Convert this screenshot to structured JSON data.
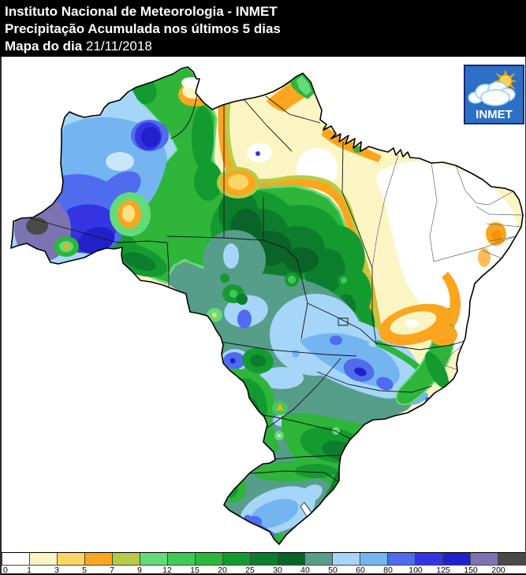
{
  "header": {
    "title": "Instituto Nacional de Meteorologia - INMET",
    "subtitle": "Precipitação Acumulada nos últimos 5 dias",
    "map_label": "Mapa do dia",
    "map_date": "21/11/2018"
  },
  "logo": {
    "text": "INMET"
  },
  "legend": {
    "tick_labels": [
      "0",
      "1",
      "3",
      "5",
      "7",
      "9",
      "12",
      "15",
      "20",
      "25",
      "30",
      "40",
      "50",
      "60",
      "80",
      "100",
      "125",
      "150",
      "200"
    ],
    "cell_colors": [
      "#ffffff",
      "#fbf5c3",
      "#fbd666",
      "#fca51f",
      "#b8cb44",
      "#63db78",
      "#41c958",
      "#2eb53a",
      "#149b30",
      "#0c7d2d",
      "#0a6327",
      "#569e8a",
      "#a5d6f9",
      "#74b5f1",
      "#4f6cef",
      "#3434e3",
      "#2121cc",
      "#7c74b2",
      "#4a4a4a"
    ]
  },
  "colors": {
    "header_bg": "#000000",
    "header_text": "#ffffff",
    "logo_blue": "#2c6fc4",
    "logo_border": "#16297e",
    "sun_yellow": "#ffd34d",
    "sun_orange": "#f5a800"
  }
}
